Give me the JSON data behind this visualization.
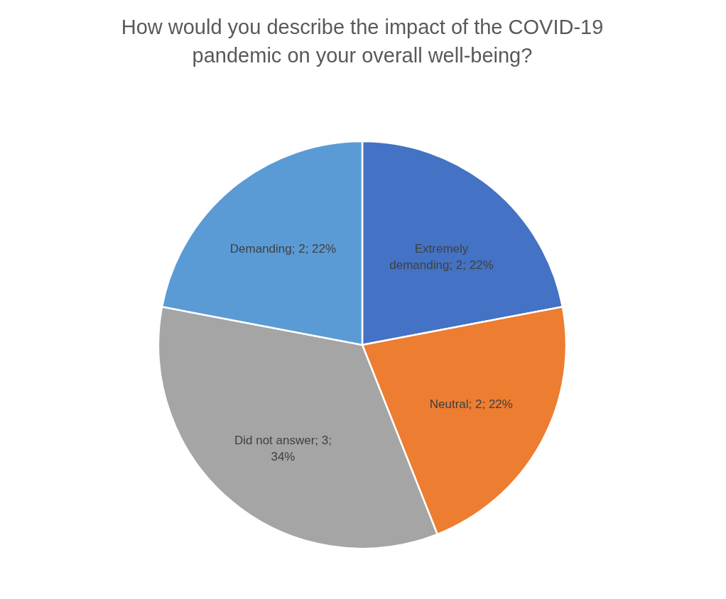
{
  "chart_data": {
    "type": "pie",
    "title": "How would you describe the impact of the COVID-19 pandemic on your overall well-being?",
    "categories": [
      "Extremely demanding",
      "Neutral",
      "Did not answer",
      "Demanding"
    ],
    "values": [
      22,
      22,
      34,
      22
    ],
    "value_labels": [
      "2; 22%",
      "2; 22%",
      "3; 34%",
      "2; 22%"
    ],
    "colors": [
      "#4472c4",
      "#ed7d31",
      "#a5a5a5",
      "#5b9bd5"
    ]
  }
}
